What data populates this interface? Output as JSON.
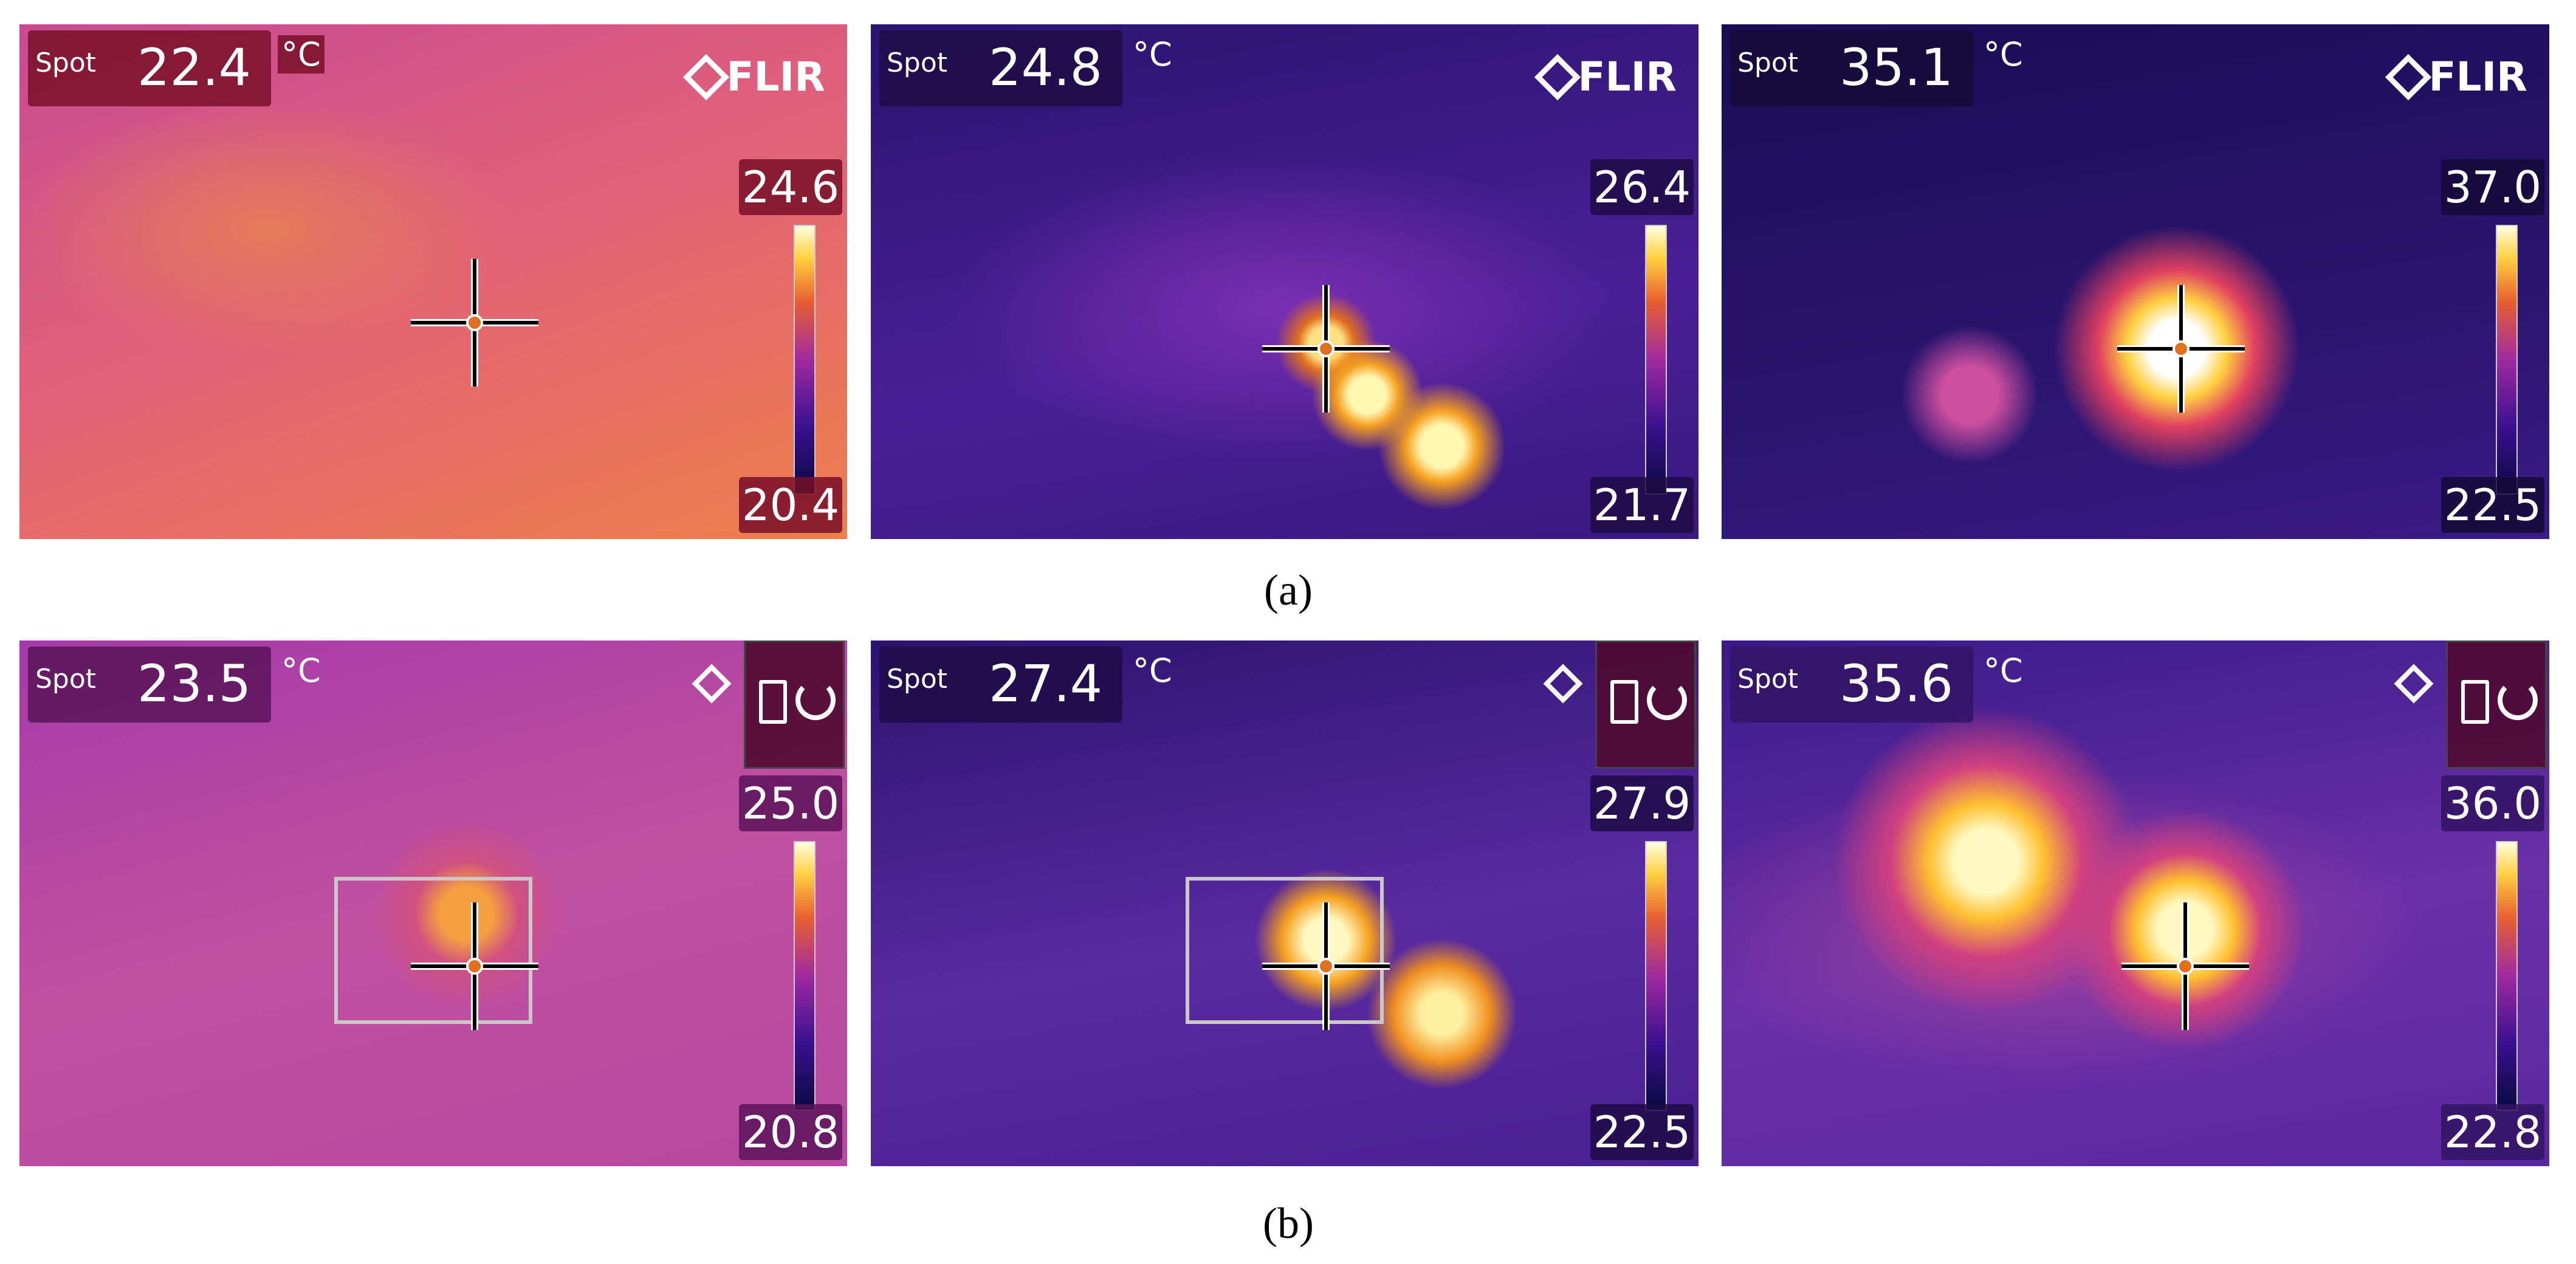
{
  "rows": [
    {
      "caption": "(a)",
      "panels": [
        {
          "spot_label": "Spot",
          "spot_value": "22.4",
          "unit": "°C",
          "logo": "FLIR",
          "scale_max": "24.6",
          "scale_min": "20.4"
        },
        {
          "spot_label": "Spot",
          "spot_value": "24.8",
          "unit": "°C",
          "logo": "FLIR",
          "scale_max": "26.4",
          "scale_min": "21.7"
        },
        {
          "spot_label": "Spot",
          "spot_value": "35.1",
          "unit": "°C",
          "logo": "FLIR",
          "scale_max": "37.0",
          "scale_min": "22.5"
        }
      ]
    },
    {
      "caption": "(b)",
      "panels": [
        {
          "spot_label": "Spot",
          "spot_value": "23.5",
          "unit": "°C",
          "scale_max": "25.0",
          "scale_min": "20.8"
        },
        {
          "spot_label": "Spot",
          "spot_value": "27.4",
          "unit": "°C",
          "scale_max": "27.9",
          "scale_min": "22.5"
        },
        {
          "spot_label": "Spot",
          "spot_value": "35.6",
          "unit": "°C",
          "scale_max": "36.0",
          "scale_min": "22.8"
        }
      ]
    }
  ]
}
